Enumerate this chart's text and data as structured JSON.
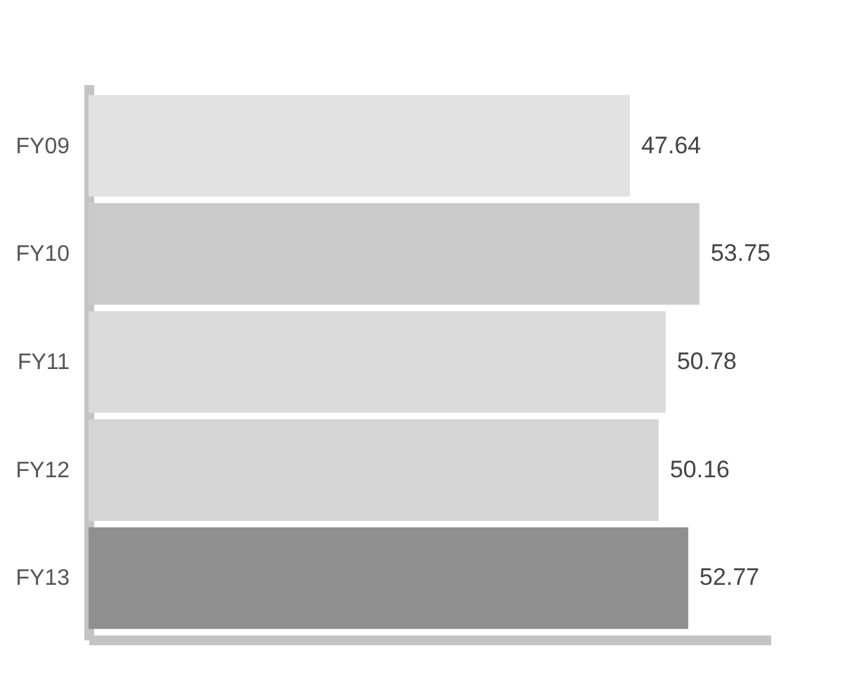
{
  "chart_data": {
    "type": "bar",
    "orientation": "horizontal",
    "categories": [
      "FY09",
      "FY10",
      "FY11",
      "FY12",
      "FY13"
    ],
    "values": [
      47.64,
      53.75,
      50.78,
      50.16,
      52.77
    ],
    "colors": [
      "#e2e2e2",
      "#cbcbcb",
      "#dadada",
      "#d5d5d5",
      "#8f8f8f"
    ],
    "xlim": [
      0,
      60
    ],
    "data_labels": true
  }
}
